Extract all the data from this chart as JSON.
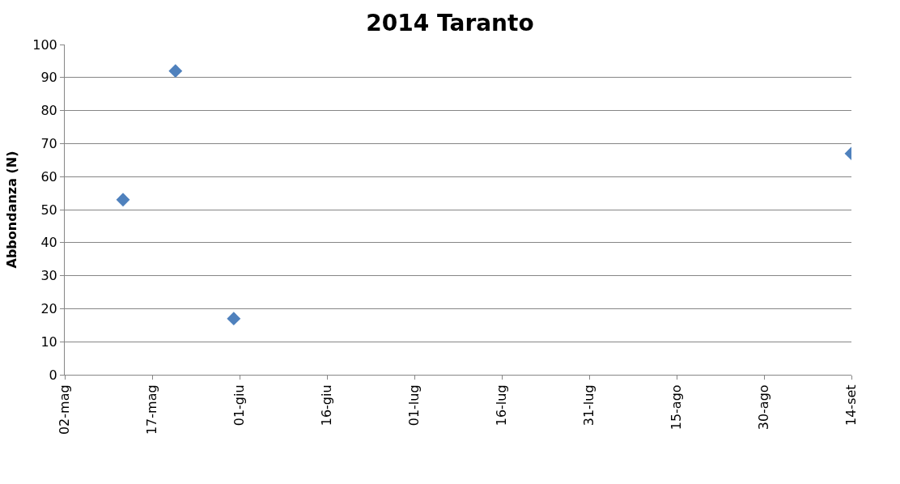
{
  "chart_data": {
    "type": "scatter",
    "title": "2014 Taranto",
    "ylabel": "Abbondanza (N)",
    "x": [
      "--05-12",
      "--05-21",
      "--05-31",
      "--09-14"
    ],
    "series": [
      {
        "color": "#4f81bd",
        "values": [
          53,
          92,
          17,
          67
        ]
      }
    ],
    "xlim": [
      "--05-02",
      "--09-14"
    ],
    "xticks": [
      {
        "value": "--05-02",
        "label": "02-mag"
      },
      {
        "value": "--05-17",
        "label": "17-mag"
      },
      {
        "value": "--06-01",
        "label": "01-giu"
      },
      {
        "value": "--06-16",
        "label": "16-giu"
      },
      {
        "value": "--07-01",
        "label": "01-lug"
      },
      {
        "value": "--07-16",
        "label": "16-lug"
      },
      {
        "value": "--07-31",
        "label": "31-lug"
      },
      {
        "value": "--08-15",
        "label": "15-ago"
      },
      {
        "value": "--08-30",
        "label": "30-ago"
      },
      {
        "value": "--09-14",
        "label": "14-set"
      }
    ],
    "ylim": [
      0,
      100
    ],
    "yticks": [
      0,
      10,
      20,
      30,
      40,
      50,
      60,
      70,
      80,
      90,
      100
    ],
    "grid": "y",
    "legend": false,
    "marker": "diamond"
  }
}
